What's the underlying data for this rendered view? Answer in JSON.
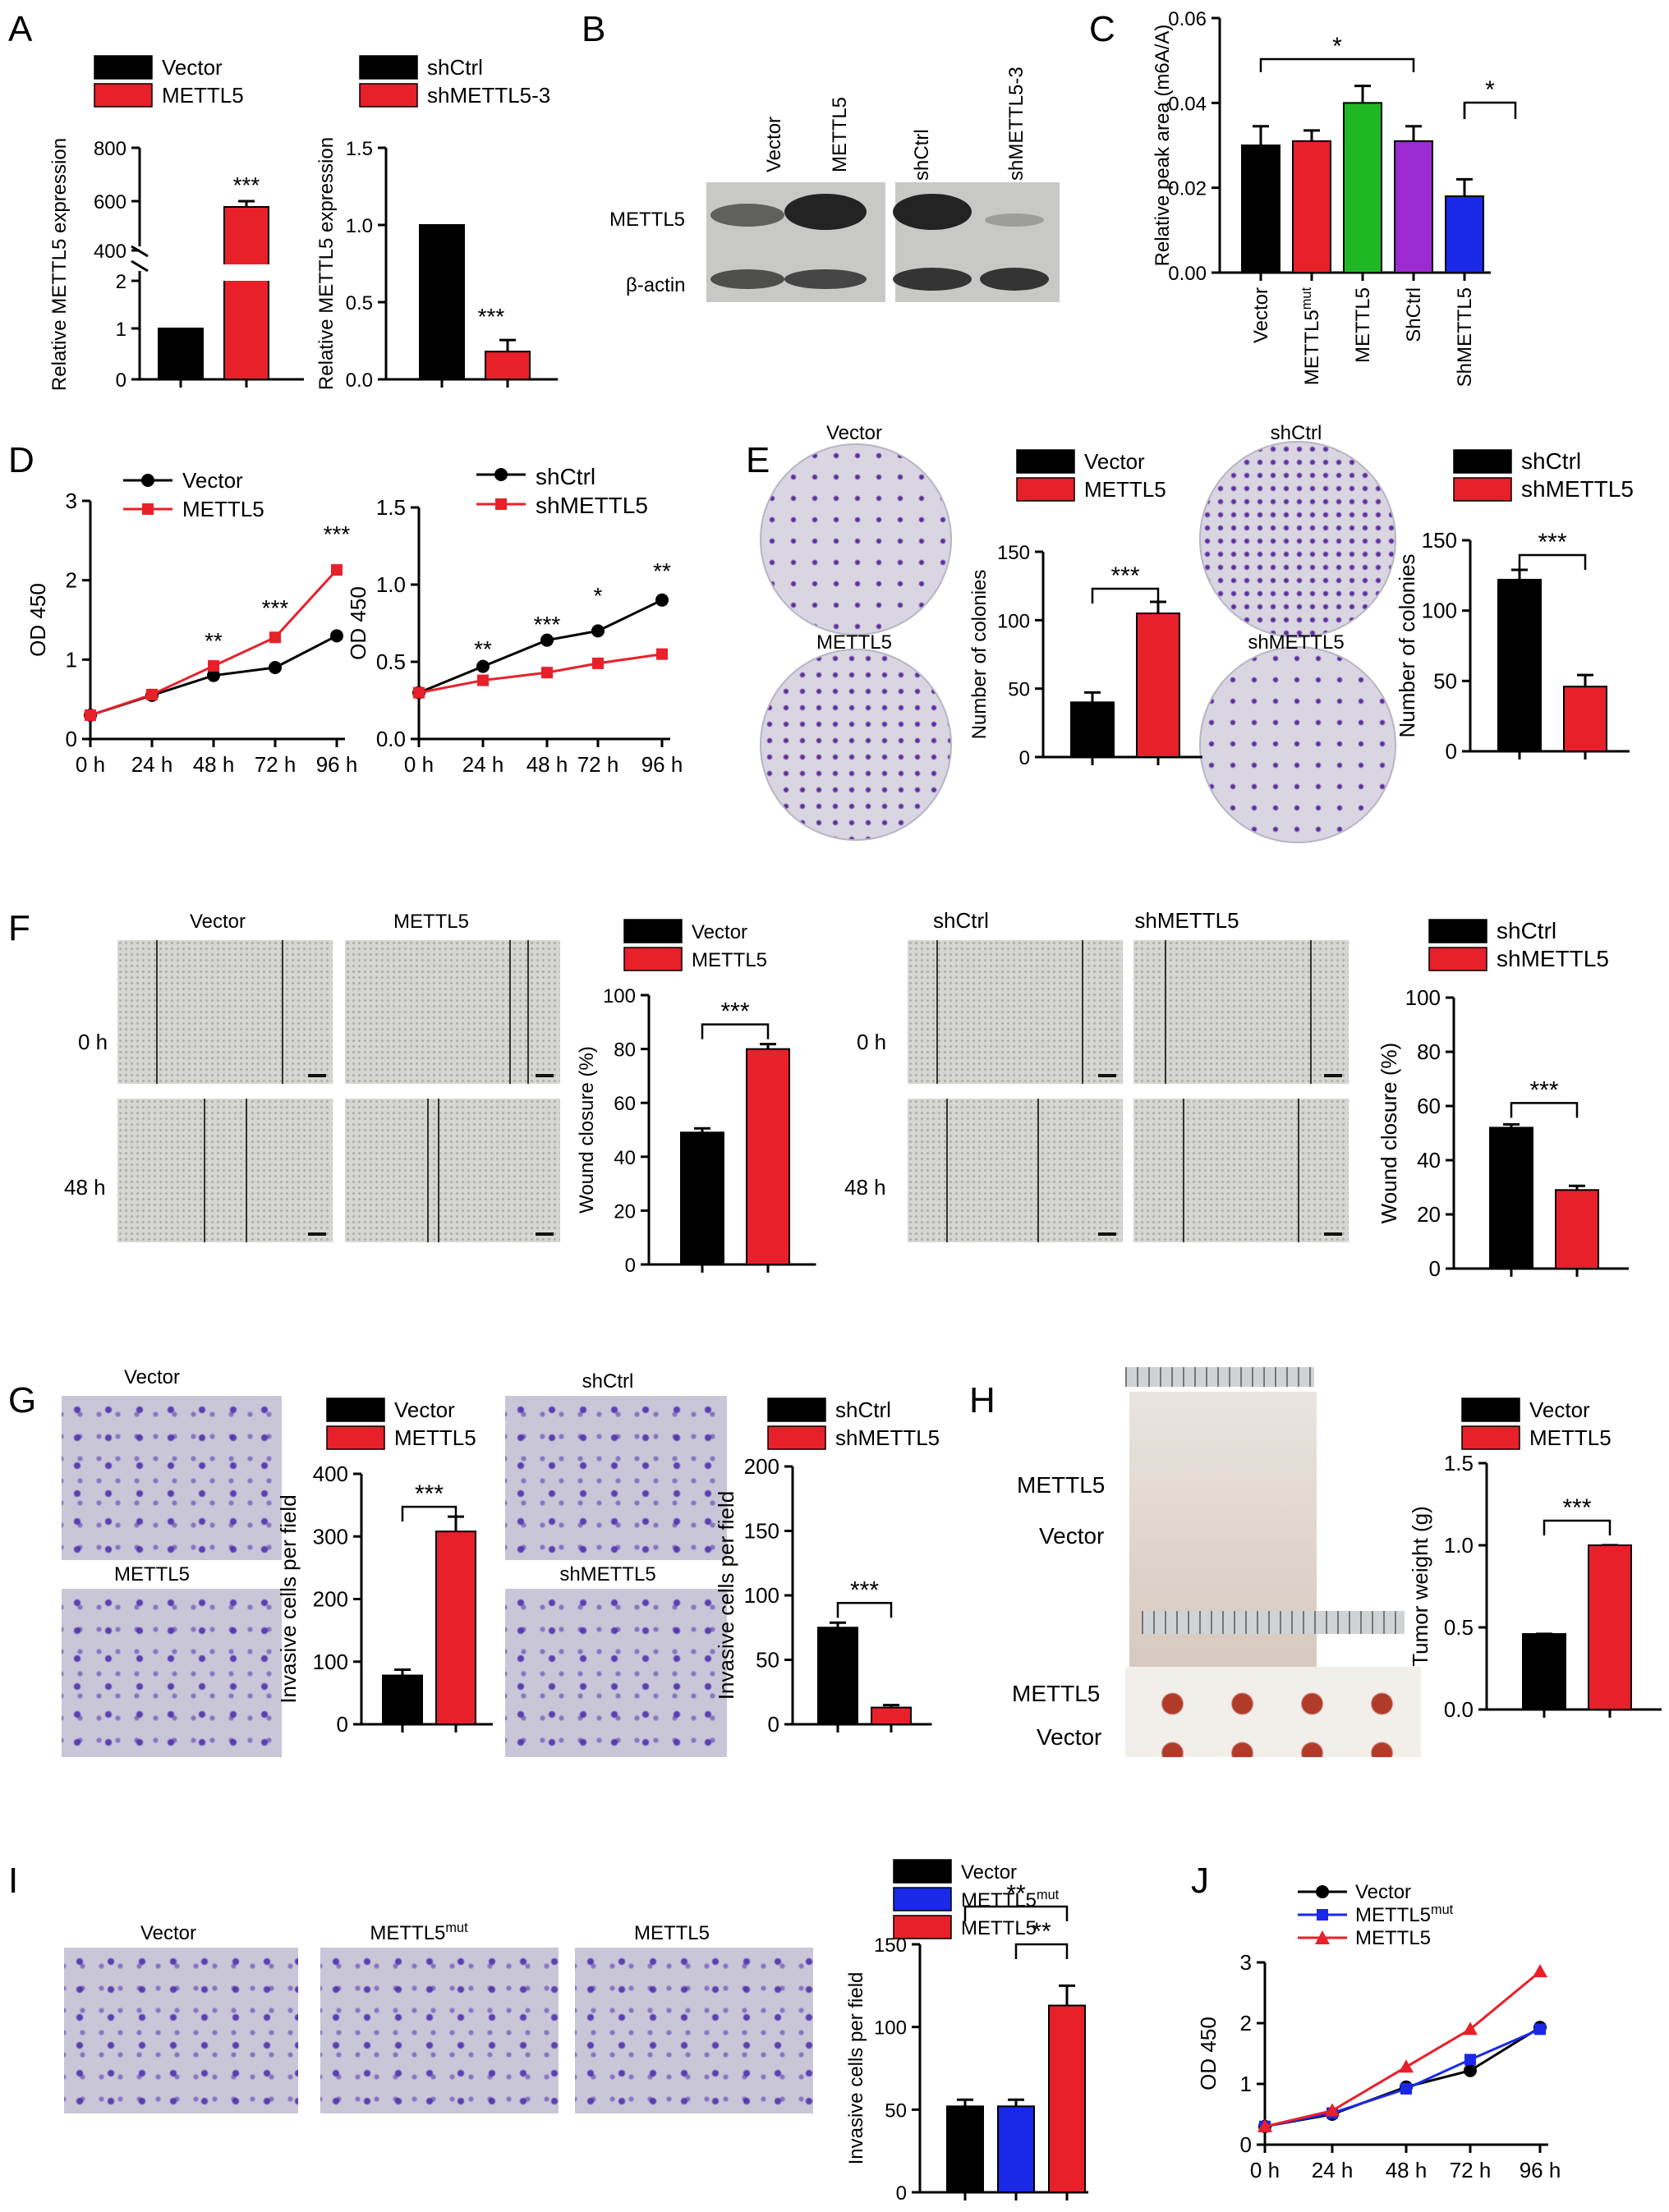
{
  "colors": {
    "black": "#000000",
    "red": "#e8202a",
    "green": "#1fb824",
    "purple": "#9b2ad1",
    "blue": "#1a28e8",
    "stain": "#5a3ea8",
    "gray": "#d9d9d6"
  },
  "panels": {
    "A": {
      "letter": "A",
      "left": {
        "legend": [
          "Vector",
          "METTL5"
        ],
        "ylabel": "Relative METTL5 expression",
        "upper_ticks": [
          "400",
          "600",
          "800"
        ],
        "lower_ticks": [
          "0",
          "1",
          "2"
        ],
        "values": [
          1,
          580
        ],
        "sig": "***"
      },
      "right": {
        "legend": [
          "shCtrl",
          "shMETTL5-3"
        ],
        "ylabel": "Relative METTL5 expression",
        "ticks": [
          "0.0",
          "0.5",
          "1.0",
          "1.5"
        ],
        "values": [
          1.0,
          0.18
        ],
        "sig": "***"
      }
    },
    "B": {
      "letter": "B",
      "lanes_left": [
        "Vector",
        "METTL5"
      ],
      "lanes_right": [
        "shCtrl",
        "shMETTL5-3"
      ],
      "rows": [
        "METTL5",
        "β-actin"
      ]
    },
    "C": {
      "letter": "C",
      "ylabel": "Relative peak area (m6A/A)",
      "ticks": [
        "0.00",
        "0.02",
        "0.04",
        "0.06"
      ],
      "categories": [
        "Vector",
        "METTL5",
        "METTL5",
        "ShCtrl",
        "ShMETTL5"
      ],
      "cat_sup": [
        "",
        "mut",
        "",
        "",
        ""
      ],
      "values": [
        0.03,
        0.031,
        0.04,
        0.031,
        0.018
      ],
      "sig": [
        "*",
        "*"
      ]
    },
    "D": {
      "letter": "D",
      "left": {
        "legend": [
          "Vector",
          "METTL5"
        ],
        "ylabel": "OD 450",
        "ticks": [
          "0",
          "1",
          "2",
          "3"
        ],
        "x": [
          "0 h",
          "24 h",
          "48 h",
          "72 h",
          "96 h"
        ],
        "vector": [
          0.3,
          0.55,
          0.8,
          0.9,
          1.3
        ],
        "mettl5": [
          0.3,
          0.56,
          0.92,
          1.28,
          2.13
        ],
        "sig": [
          "**",
          "***",
          "***"
        ]
      },
      "right": {
        "legend": [
          "shCtrl",
          "shMETTL5"
        ],
        "ylabel": "OD 450",
        "ticks": [
          "0.0",
          "0.5",
          "1.0",
          "1.5"
        ],
        "x": [
          "0 h",
          "24 h",
          "48 h",
          "72 h",
          "96 h"
        ],
        "shctrl": [
          0.3,
          0.47,
          0.64,
          0.7,
          0.9
        ],
        "shmettl5": [
          0.3,
          0.38,
          0.43,
          0.49,
          0.55
        ],
        "sig": [
          "**",
          "***",
          "*",
          "**"
        ]
      }
    },
    "E": {
      "letter": "E",
      "plates": [
        "Vector",
        "METTL5",
        "shCtrl",
        "shMETTL5"
      ],
      "left": {
        "legend": [
          "Vector",
          "METTL5"
        ],
        "ylabel": "Number of colonies",
        "ticks": [
          "0",
          "50",
          "100",
          "150"
        ],
        "values": [
          40,
          105
        ],
        "sig": "***"
      },
      "right": {
        "legend": [
          "shCtrl",
          "shMETTL5"
        ],
        "ylabel": "Number of colonies",
        "ticks": [
          "0",
          "50",
          "100",
          "150"
        ],
        "values": [
          122,
          46
        ],
        "sig": "***"
      }
    },
    "F": {
      "letter": "F",
      "cols_left": [
        "Vector",
        "METTL5"
      ],
      "cols_right": [
        "shCtrl",
        "shMETTL5"
      ],
      "rows": [
        "0 h",
        "48 h"
      ],
      "left": {
        "legend": [
          "Vector",
          "METTL5"
        ],
        "ylabel": "Wound closure (%)",
        "ticks": [
          "0",
          "20",
          "40",
          "60",
          "80",
          "100"
        ],
        "values": [
          49,
          80
        ],
        "sig": "***"
      },
      "right": {
        "legend": [
          "shCtrl",
          "shMETTL5"
        ],
        "ylabel": "Wound closure (%)",
        "ticks": [
          "0",
          "20",
          "40",
          "60",
          "80",
          "100"
        ],
        "values": [
          52,
          29
        ],
        "sig": "***"
      }
    },
    "G": {
      "letter": "G",
      "images_left": [
        "Vector",
        "METTL5"
      ],
      "images_right": [
        "shCtrl",
        "shMETTL5"
      ],
      "left": {
        "legend": [
          "Vector",
          "METTL5"
        ],
        "ylabel": "Invasive cells per field",
        "ticks": [
          "0",
          "100",
          "200",
          "300",
          "400"
        ],
        "values": [
          78,
          308
        ],
        "sig": "***"
      },
      "right": {
        "legend": [
          "shCtrl",
          "shMETTL5"
        ],
        "ylabel": "Invasive cells per field",
        "ticks": [
          "0",
          "50",
          "100",
          "150",
          "200"
        ],
        "values": [
          75,
          13
        ],
        "sig": "***"
      }
    },
    "H": {
      "letter": "H",
      "rows": [
        "METTL5",
        "Vector",
        "METTL5",
        "Vector"
      ],
      "chart": {
        "legend": [
          "Vector",
          "METTL5"
        ],
        "ylabel": "Tumor weight (g)",
        "ticks": [
          "0.0",
          "0.5",
          "1.0",
          "1.5"
        ],
        "values": [
          0.46,
          1.0
        ],
        "sig": "***"
      }
    },
    "I": {
      "letter": "I",
      "images": [
        "Vector",
        "METTL5",
        "METTL5"
      ],
      "images_sup": [
        "",
        "mut",
        ""
      ],
      "legend": [
        "Vector",
        "METTL5",
        "METTL5"
      ],
      "legend_sup": [
        "",
        "mut",
        ""
      ],
      "ylabel": "Invasive cells per field",
      "ticks": [
        "0",
        "50",
        "100",
        "150"
      ],
      "values": [
        52,
        52,
        113
      ],
      "sig": [
        "**",
        "**"
      ]
    },
    "J": {
      "letter": "J",
      "legend": [
        "Vector",
        "METTL5",
        "METTL5"
      ],
      "legend_sup": [
        "",
        "mut",
        ""
      ],
      "ylabel": "OD 450",
      "ticks": [
        "0",
        "1",
        "2",
        "3"
      ],
      "x": [
        "0 h",
        "24 h",
        "48 h",
        "72 h",
        "96 h"
      ],
      "vector": [
        0.3,
        0.5,
        0.95,
        1.22,
        1.93
      ],
      "mut": [
        0.3,
        0.52,
        0.92,
        1.4,
        1.9
      ],
      "mettl5": [
        0.3,
        0.56,
        1.28,
        1.9,
        2.85
      ]
    }
  },
  "chart_data": [
    {
      "type": "bar",
      "panel": "A-left",
      "categories": [
        "Vector",
        "METTL5"
      ],
      "values": [
        1,
        580
      ],
      "ylabel": "Relative METTL5 expression"
    },
    {
      "type": "bar",
      "panel": "A-right",
      "categories": [
        "shCtrl",
        "shMETTL5-3"
      ],
      "values": [
        1.0,
        0.18
      ],
      "ylabel": "Relative METTL5 expression",
      "ylim": [
        0,
        1.5
      ]
    },
    {
      "type": "bar",
      "panel": "C",
      "categories": [
        "Vector",
        "METTL5mut",
        "METTL5",
        "ShCtrl",
        "ShMETTL5"
      ],
      "values": [
        0.03,
        0.031,
        0.04,
        0.031,
        0.018
      ],
      "ylabel": "Relative peak area (m6A/A)",
      "ylim": [
        0,
        0.06
      ]
    },
    {
      "type": "line",
      "panel": "D-left",
      "x": [
        "0 h",
        "24 h",
        "48 h",
        "72 h",
        "96 h"
      ],
      "series": [
        {
          "name": "Vector",
          "values": [
            0.3,
            0.55,
            0.8,
            0.9,
            1.3
          ]
        },
        {
          "name": "METTL5",
          "values": [
            0.3,
            0.56,
            0.92,
            1.28,
            2.13
          ]
        }
      ],
      "ylabel": "OD 450",
      "ylim": [
        0,
        3
      ]
    },
    {
      "type": "line",
      "panel": "D-right",
      "x": [
        "0 h",
        "24 h",
        "48 h",
        "72 h",
        "96 h"
      ],
      "series": [
        {
          "name": "shCtrl",
          "values": [
            0.3,
            0.47,
            0.64,
            0.7,
            0.9
          ]
        },
        {
          "name": "shMETTL5",
          "values": [
            0.3,
            0.38,
            0.43,
            0.49,
            0.55
          ]
        }
      ],
      "ylabel": "OD 450",
      "ylim": [
        0,
        1.5
      ]
    },
    {
      "type": "bar",
      "panel": "E-left",
      "categories": [
        "Vector",
        "METTL5"
      ],
      "values": [
        40,
        105
      ],
      "ylabel": "Number of colonies",
      "ylim": [
        0,
        150
      ]
    },
    {
      "type": "bar",
      "panel": "E-right",
      "categories": [
        "shCtrl",
        "shMETTL5"
      ],
      "values": [
        122,
        46
      ],
      "ylabel": "Number of colonies",
      "ylim": [
        0,
        150
      ]
    },
    {
      "type": "bar",
      "panel": "F-left",
      "categories": [
        "Vector",
        "METTL5"
      ],
      "values": [
        49,
        80
      ],
      "ylabel": "Wound closure (%)",
      "ylim": [
        0,
        100
      ]
    },
    {
      "type": "bar",
      "panel": "F-right",
      "categories": [
        "shCtrl",
        "shMETTL5"
      ],
      "values": [
        52,
        29
      ],
      "ylabel": "Wound closure (%)",
      "ylim": [
        0,
        100
      ]
    },
    {
      "type": "bar",
      "panel": "G-left",
      "categories": [
        "Vector",
        "METTL5"
      ],
      "values": [
        78,
        308
      ],
      "ylabel": "Invasive cells per field",
      "ylim": [
        0,
        400
      ]
    },
    {
      "type": "bar",
      "panel": "G-right",
      "categories": [
        "shCtrl",
        "shMETTL5"
      ],
      "values": [
        75,
        13
      ],
      "ylabel": "Invasive cells per field",
      "ylim": [
        0,
        200
      ]
    },
    {
      "type": "bar",
      "panel": "H",
      "categories": [
        "Vector",
        "METTL5"
      ],
      "values": [
        0.46,
        1.0
      ],
      "ylabel": "Tumor weight (g)",
      "ylim": [
        0,
        1.5
      ]
    },
    {
      "type": "bar",
      "panel": "I",
      "categories": [
        "Vector",
        "METTL5mut",
        "METTL5"
      ],
      "values": [
        52,
        52,
        113
      ],
      "ylabel": "Invasive cells per field",
      "ylim": [
        0,
        150
      ]
    },
    {
      "type": "line",
      "panel": "J",
      "x": [
        "0 h",
        "24 h",
        "48 h",
        "72 h",
        "96 h"
      ],
      "series": [
        {
          "name": "Vector",
          "values": [
            0.3,
            0.5,
            0.95,
            1.22,
            1.93
          ]
        },
        {
          "name": "METTL5mut",
          "values": [
            0.3,
            0.52,
            0.92,
            1.4,
            1.9
          ]
        },
        {
          "name": "METTL5",
          "values": [
            0.3,
            0.56,
            1.28,
            1.9,
            2.85
          ]
        }
      ],
      "ylabel": "OD 450",
      "ylim": [
        0,
        3
      ]
    }
  ]
}
